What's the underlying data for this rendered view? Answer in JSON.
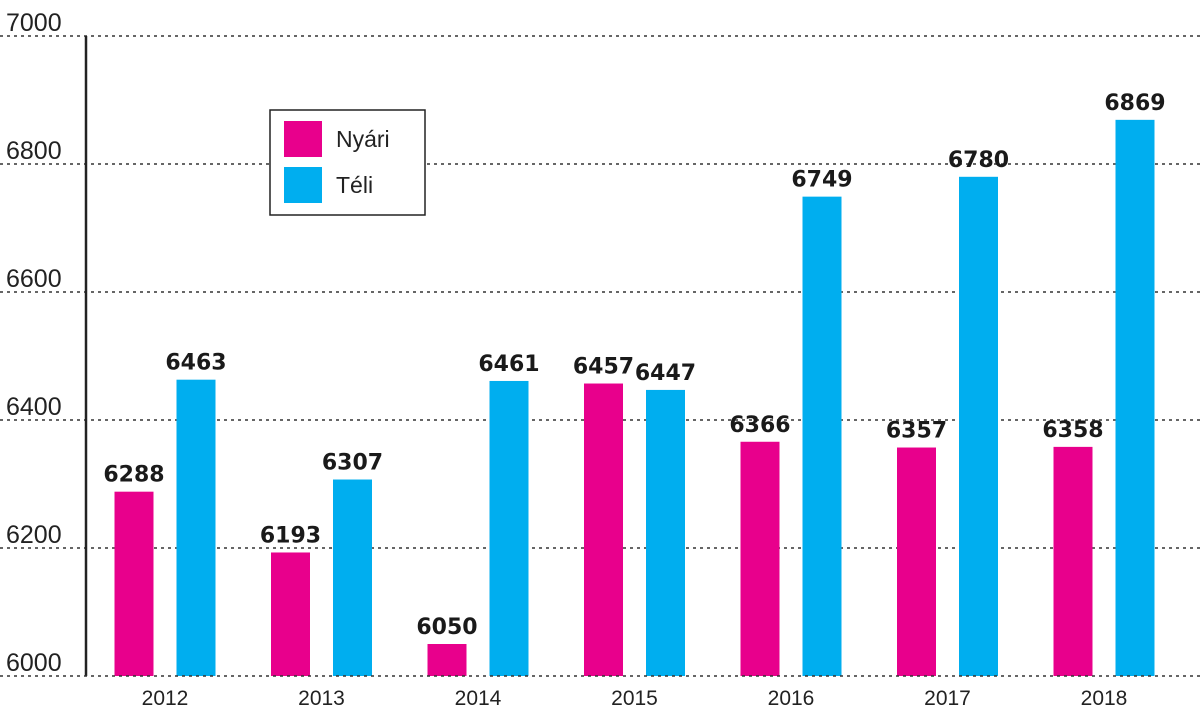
{
  "chart_data": {
    "type": "bar",
    "categories": [
      "2012",
      "2013",
      "2014",
      "2015",
      "2016",
      "2017",
      "2018"
    ],
    "series": [
      {
        "name": "Nyári",
        "color": "#e8008c",
        "values": [
          6288,
          6193,
          6050,
          6457,
          6366,
          6357,
          6358
        ]
      },
      {
        "name": "Téli",
        "color": "#00aeef",
        "values": [
          6463,
          6307,
          6461,
          6447,
          6749,
          6780,
          6869
        ]
      }
    ],
    "ylim": [
      6000,
      7000
    ],
    "yticks": [
      6000,
      6200,
      6400,
      6600,
      6800,
      7000
    ],
    "grid": true,
    "legend": "top-left"
  }
}
